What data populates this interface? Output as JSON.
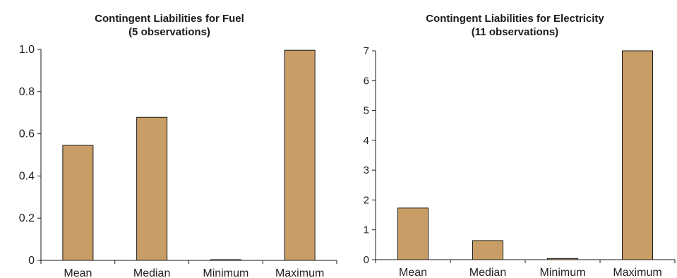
{
  "colors": {
    "bar_fill": "#C99E66",
    "bar_stroke": "#1a1a1a",
    "axis": "#1a1a1a"
  },
  "chart_data": [
    {
      "type": "bar",
      "title": "Contingent Liabilities for Fuel",
      "subtitle": "(5 observations)",
      "categories": [
        "Mean",
        "Median",
        "Minimum",
        "Maximum"
      ],
      "values": [
        0.545,
        0.678,
        0.0,
        0.996
      ],
      "ylim": [
        0,
        1.0
      ],
      "yticks": [
        "0",
        "0.2",
        "0.4",
        "0.6",
        "0.8",
        "1.0"
      ],
      "grid": false,
      "legend": "none"
    },
    {
      "type": "bar",
      "title": "Contingent Liabilities for Electricity",
      "subtitle": "(11 observations)",
      "categories": [
        "Mean",
        "Median",
        "Minimum",
        "Maximum"
      ],
      "values": [
        1.73,
        0.64,
        0.04,
        7.0
      ],
      "ylim": [
        0,
        7
      ],
      "yticks": [
        "0",
        "1",
        "2",
        "3",
        "4",
        "5",
        "6",
        "7"
      ],
      "grid": false,
      "legend": "none"
    }
  ]
}
